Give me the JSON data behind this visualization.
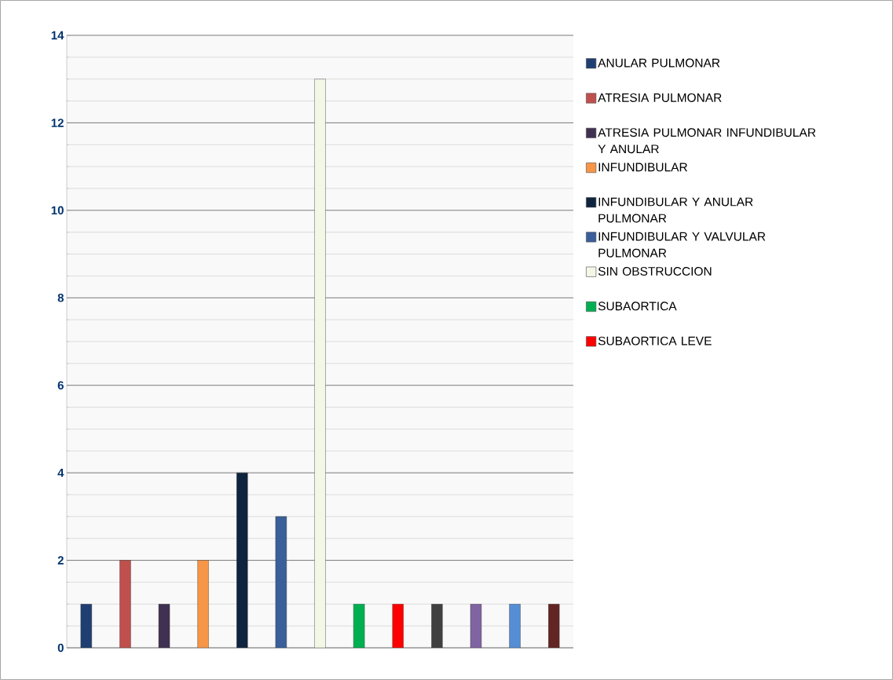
{
  "chart_data": {
    "type": "bar",
    "categories": [
      null,
      null,
      null,
      null,
      null,
      null,
      null,
      null,
      null,
      null,
      null,
      null,
      null
    ],
    "series": [
      {
        "name": "ANULAR PULMONAR",
        "color": "#1f3f73",
        "values": [
          1,
          null,
          null,
          null,
          null,
          null,
          null,
          null,
          null,
          null,
          null,
          null,
          null
        ]
      },
      {
        "name": "ATRESIA PULMONAR",
        "color": "#c0504d",
        "values": [
          null,
          2,
          null,
          null,
          null,
          null,
          null,
          null,
          null,
          null,
          null,
          null,
          null
        ]
      },
      {
        "name": "ATRESIA PULMONAR INFUNDIBULAR Y ANULAR",
        "color": "#403152",
        "values": [
          null,
          null,
          1,
          null,
          null,
          null,
          null,
          null,
          null,
          null,
          null,
          null,
          null
        ]
      },
      {
        "name": "INFUNDIBULAR",
        "color": "#f79646",
        "values": [
          null,
          null,
          null,
          2,
          null,
          null,
          null,
          null,
          null,
          null,
          null,
          null,
          null
        ]
      },
      {
        "name": "INFUNDIBULAR Y ANULAR PULMONAR",
        "color": "#0f243e",
        "values": [
          null,
          null,
          null,
          null,
          4,
          null,
          null,
          null,
          null,
          null,
          null,
          null,
          null
        ]
      },
      {
        "name": "INFUNDIBULAR Y VALVULAR PULMONAR",
        "color": "#3a5f9a",
        "values": [
          null,
          null,
          null,
          null,
          null,
          3,
          null,
          null,
          null,
          null,
          null,
          null,
          null
        ]
      },
      {
        "name": "SIN OBSTRUCCION",
        "color": "#f2f7e6",
        "values": [
          null,
          null,
          null,
          null,
          null,
          null,
          13,
          null,
          null,
          null,
          null,
          null,
          null
        ]
      },
      {
        "name": "SUBAORTICA",
        "color": "#00b050",
        "values": [
          null,
          null,
          null,
          null,
          null,
          null,
          null,
          1,
          null,
          null,
          null,
          null,
          null
        ]
      },
      {
        "name": "SUBAORTICA LEVE",
        "color": "#ff0000",
        "values": [
          null,
          null,
          null,
          null,
          null,
          null,
          null,
          null,
          1,
          null,
          null,
          null,
          null
        ]
      },
      {
        "color": "#404040",
        "values": [
          null,
          null,
          null,
          null,
          null,
          null,
          null,
          null,
          null,
          1,
          null,
          null,
          null
        ]
      },
      {
        "color": "#8064a2",
        "values": [
          null,
          null,
          null,
          null,
          null,
          null,
          null,
          null,
          null,
          null,
          1,
          null,
          null
        ]
      },
      {
        "color": "#558ed5",
        "values": [
          null,
          null,
          null,
          null,
          null,
          null,
          null,
          null,
          null,
          null,
          null,
          1,
          null
        ]
      },
      {
        "color": "#632523",
        "values": [
          null,
          null,
          null,
          null,
          null,
          null,
          null,
          null,
          null,
          null,
          null,
          null,
          1
        ]
      }
    ],
    "ylim": [
      0,
      14
    ],
    "yticks": [
      0,
      2,
      4,
      6,
      8,
      10,
      12,
      14
    ],
    "grid": "y",
    "legend": "right"
  }
}
